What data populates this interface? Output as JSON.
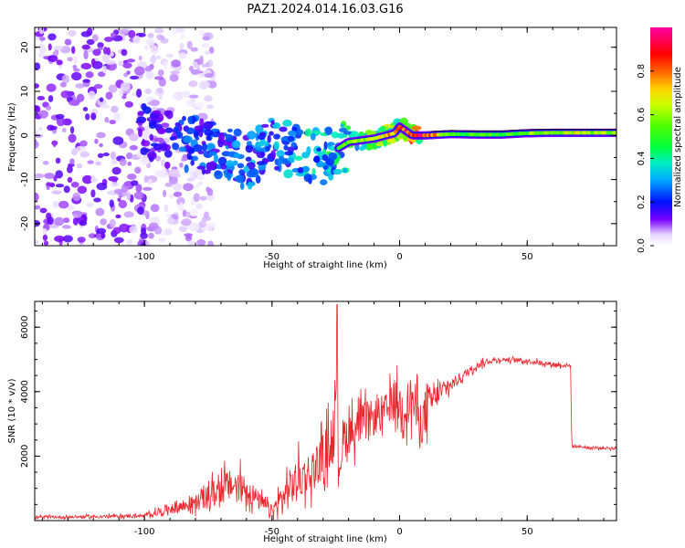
{
  "title": "PAZ1.2024.014.16.03.G16",
  "chart_data": [
    {
      "type": "heatmap",
      "xlabel": "Height of straight line (km)",
      "ylabel": "Frequency (Hz)",
      "xlim": [
        -143,
        85
      ],
      "ylim": [
        -25,
        24.5
      ],
      "xticks": [
        -100,
        -50,
        0,
        50
      ],
      "xtick_labels": [
        "-100",
        "-50",
        "0",
        "50"
      ],
      "yticks": [
        -20,
        -10,
        0,
        10,
        20
      ],
      "ytick_labels": [
        "-20",
        "-10",
        "0",
        "10",
        "20"
      ],
      "colorbar": {
        "label": "Normalized spectral amplitude",
        "range": [
          0,
          1
        ],
        "ticks": [
          0.0,
          0.2,
          0.4,
          0.6,
          0.8
        ],
        "tick_labels": [
          "0.0",
          "0.2",
          "0.4",
          "0.6",
          "0.8"
        ],
        "colormap": "gist_ncar-like"
      },
      "ridge": {
        "x": [
          -100,
          -90,
          -80,
          -70,
          -60,
          -50,
          -40,
          -30,
          -20,
          -10,
          -2,
          0,
          5,
          10,
          20,
          30,
          40,
          50,
          60,
          70,
          80,
          85
        ],
        "y": [
          1,
          -1,
          -2,
          -3.5,
          -6,
          -2,
          -4,
          -5,
          -1.5,
          -0.7,
          0.5,
          2,
          0,
          0,
          0.3,
          0.2,
          0.2,
          0.5,
          0.6,
          0.6,
          0.6,
          0.6
        ],
        "amplitude": [
          0.2,
          0.25,
          0.3,
          0.3,
          0.35,
          0.35,
          0.4,
          0.45,
          0.55,
          0.65,
          0.75,
          0.8,
          0.9,
          0.9,
          0.5,
          0.5,
          0.5,
          0.55,
          0.6,
          0.65,
          0.6,
          0.55
        ]
      },
      "noise_region": {
        "x_range": [
          -143,
          -85
        ],
        "f_range": [
          -25,
          24.5
        ],
        "amplitude": 0.1
      }
    },
    {
      "type": "line",
      "xlabel": "Height of straight line (km)",
      "ylabel": "SNR (10 * v/v)",
      "xlim": [
        -143,
        85
      ],
      "ylim": [
        0,
        6800
      ],
      "xticks": [
        -100,
        -50,
        0,
        50
      ],
      "xtick_labels": [
        "-100",
        "-50",
        "0",
        "50"
      ],
      "yticks": [
        2000,
        4000,
        6000
      ],
      "ytick_labels": [
        "2000",
        "4000",
        "6000"
      ],
      "color": "#e8262b",
      "series": [
        {
          "x": [
            -143,
            -120,
            -100,
            -95,
            -90,
            -85,
            -80,
            -75,
            -70,
            -65,
            -60,
            -55,
            -50,
            -45,
            -40,
            -35,
            -30,
            -27,
            -25,
            -24.5,
            -24,
            -22,
            -20,
            -15,
            -10,
            -5,
            -2,
            0,
            2,
            5,
            8,
            10,
            12,
            15,
            20,
            25,
            30,
            35,
            40,
            45,
            50,
            55,
            60,
            67,
            67.5,
            70,
            75,
            80,
            85
          ],
          "y": [
            100,
            120,
            150,
            250,
            380,
            450,
            550,
            750,
            1000,
            1100,
            1000,
            600,
            300,
            800,
            1300,
            1500,
            2000,
            2500,
            3000,
            6700,
            1500,
            2600,
            2700,
            3000,
            3200,
            3400,
            3800,
            3600,
            3500,
            3800,
            3000,
            3300,
            3700,
            3900,
            4200,
            4500,
            4800,
            4950,
            5000,
            4980,
            4950,
            4900,
            4850,
            4800,
            2300,
            2300,
            2250,
            2250,
            2250
          ],
          "spread": [
            60,
            60,
            80,
            150,
            250,
            300,
            350,
            500,
            700,
            700,
            650,
            400,
            250,
            800,
            900,
            900,
            1000,
            1200,
            1300,
            0,
            900,
            1000,
            900,
            900,
            800,
            800,
            900,
            900,
            900,
            1200,
            1000,
            1100,
            700,
            500,
            300,
            200,
            150,
            120,
            100,
            100,
            100,
            100,
            100,
            100,
            60,
            60,
            60,
            60,
            60
          ]
        }
      ]
    }
  ]
}
